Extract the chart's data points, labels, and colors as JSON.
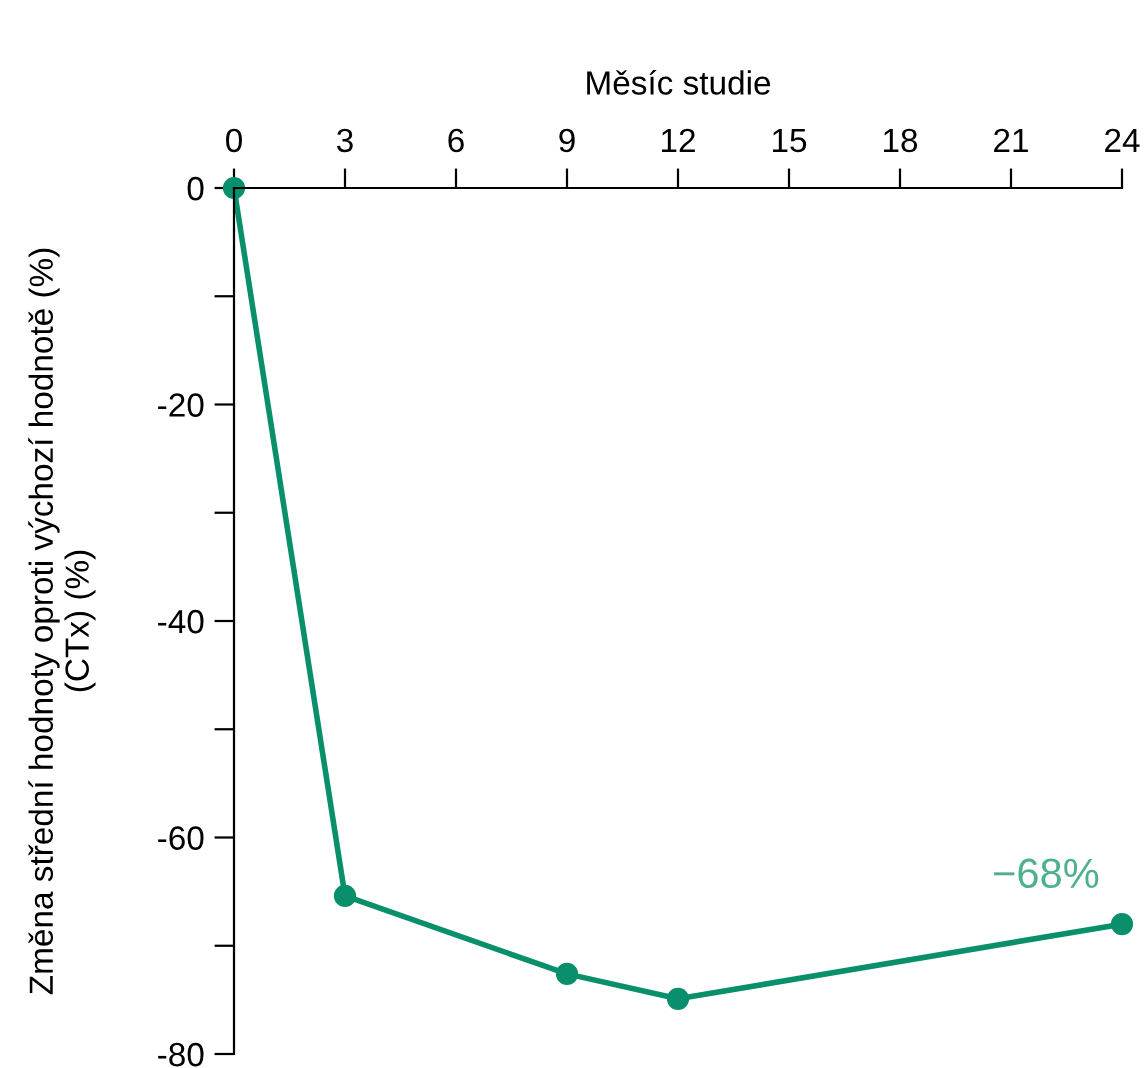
{
  "chart_data": {
    "type": "line",
    "xlabel": "Měsíc studie",
    "ylabel": "Změna střední hodnoty oproti výchozí hodnotě (%)\n(CTx) (%)",
    "x": [
      0,
      3,
      9,
      12,
      24
    ],
    "series": [
      {
        "color": "#0a8f6c",
        "values": [
          0,
          -65.4,
          -72.6,
          -74.9,
          -68
        ]
      }
    ],
    "annotations": [
      {
        "text": "−68%",
        "x": 24,
        "y": -68
      }
    ],
    "xlim": [
      0,
      24
    ],
    "xticks": [
      0,
      3,
      6,
      9,
      12,
      15,
      18,
      21,
      24
    ],
    "ylim": [
      -80,
      0
    ],
    "yticks": [
      0,
      {
        "value": -10,
        "label": null
      },
      -20,
      {
        "value": -30,
        "label": null
      },
      -40,
      {
        "value": -50,
        "label": null
      },
      -60,
      {
        "value": -70,
        "label": null
      },
      -80
    ],
    "marker": "circle",
    "line_style": "solid",
    "grid": false,
    "legend": false
  }
}
